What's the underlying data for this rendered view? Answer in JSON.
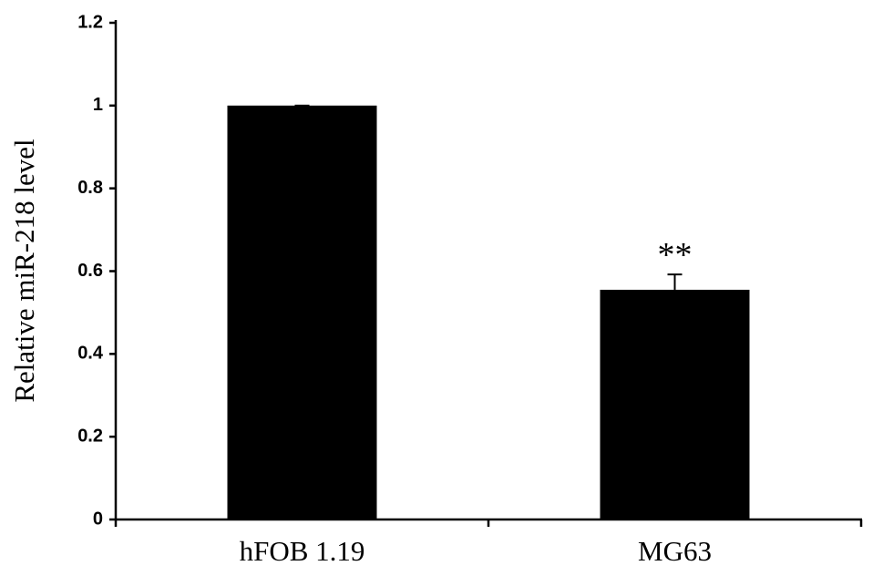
{
  "chart_data": {
    "type": "bar",
    "y_label": "Relative miR-218 level",
    "categories": [
      "hFOB 1.19",
      "MG63"
    ],
    "values": [
      1.0,
      0.555
    ],
    "errors": [
      0,
      0.037
    ],
    "value_annotations": [
      null,
      "**"
    ],
    "color": "#000000",
    "ylim": [
      0,
      1.2
    ],
    "yticks": [
      0,
      0.2,
      0.4,
      0.6,
      0.8,
      1,
      1.2
    ],
    "grid": false
  }
}
